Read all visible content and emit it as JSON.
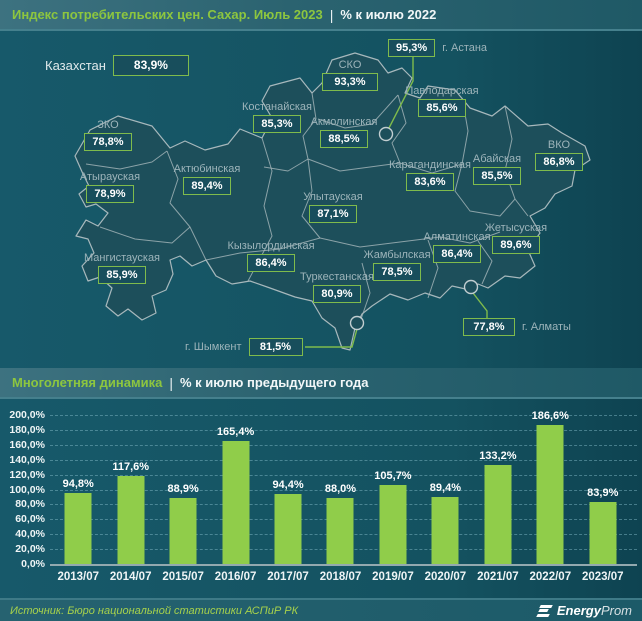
{
  "header": {
    "title_highlight": "Индекс потребительских цен. Сахар. Июль 2023",
    "divider": "|",
    "title_rest": "% к июлю 2022"
  },
  "map": {
    "country": {
      "name": "Казахстан",
      "value": "83,9%"
    },
    "regions": [
      {
        "name": "ЗКО",
        "value": "78,8%"
      },
      {
        "name": "Атырауская",
        "value": "78,9%"
      },
      {
        "name": "Мангистауская",
        "value": "85,9%"
      },
      {
        "name": "Актюбинская",
        "value": "89,4%"
      },
      {
        "name": "Костанайская",
        "value": "85,3%"
      },
      {
        "name": "СКО",
        "value": "93,3%"
      },
      {
        "name": "г. Астана",
        "value": "95,3%"
      },
      {
        "name": "Акмолинская",
        "value": "88,5%"
      },
      {
        "name": "Павлодарская",
        "value": "85,6%"
      },
      {
        "name": "Карагандинская",
        "value": "83,6%"
      },
      {
        "name": "Абайская",
        "value": "85,5%"
      },
      {
        "name": "ВКО",
        "value": "86,8%"
      },
      {
        "name": "Улытауская",
        "value": "87,1%"
      },
      {
        "name": "Кызылординская",
        "value": "86,4%"
      },
      {
        "name": "Туркестанская",
        "value": "80,9%"
      },
      {
        "name": "Жамбылская",
        "value": "78,5%"
      },
      {
        "name": "Алматинская",
        "value": "86,4%"
      },
      {
        "name": "Жетысуская",
        "value": "89,6%"
      },
      {
        "name": "г. Алматы",
        "value": "77,8%"
      },
      {
        "name": "г. Шымкент",
        "value": "81,5%"
      }
    ]
  },
  "dynamics": {
    "title_highlight": "Многолетняя динамика",
    "divider": "|",
    "title_rest": "% к июлю предыдущего года"
  },
  "chart_data": {
    "type": "bar",
    "title": "Многолетняя динамика, % к июлю предыдущего года",
    "categories": [
      "2013/07",
      "2014/07",
      "2015/07",
      "2016/07",
      "2017/07",
      "2018/07",
      "2019/07",
      "2020/07",
      "2021/07",
      "2022/07",
      "2023/07"
    ],
    "values": [
      94.8,
      117.6,
      88.9,
      165.4,
      94.4,
      88.0,
      105.7,
      89.4,
      133.2,
      186.6,
      83.9
    ],
    "labels": [
      "94,8%",
      "117,6%",
      "88,9%",
      "165,4%",
      "94,4%",
      "88,0%",
      "105,7%",
      "89,4%",
      "133,2%",
      "186,6%",
      "83,9%"
    ],
    "ytick_labels": [
      "0,0%",
      "20,0%",
      "40,0%",
      "60,0%",
      "80,0%",
      "100,0%",
      "120,0%",
      "140,0%",
      "160,0%",
      "180,0%",
      "200,0%"
    ],
    "ylim": [
      0,
      200
    ],
    "grid": "horizontal dashed",
    "legend_position": "none",
    "bar_color": "#90cd4a",
    "xlabel": "",
    "ylabel": ""
  },
  "footer": {
    "source": "Источник: Бюро национальной статистики АСПиР РК",
    "logo_bold": "Energy",
    "logo_light": "Prom"
  },
  "colors": {
    "accent_green": "#8dc63f",
    "badge_border": "#7fbb4c",
    "background": "#145260",
    "region_fill": "#1d4f5b"
  }
}
